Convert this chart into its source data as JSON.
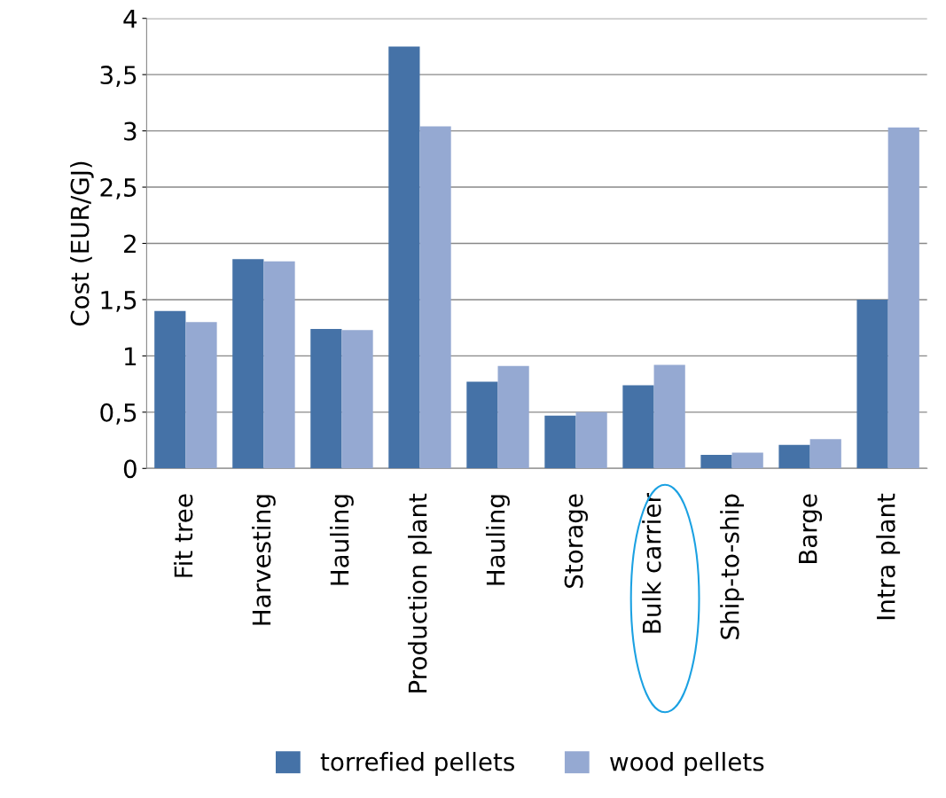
{
  "chart_data": {
    "type": "bar",
    "ylabel": "Cost (EUR/GJ)",
    "categories": [
      "Fit tree",
      "Harvesting",
      "Hauling",
      "Production plant",
      "Hauling",
      "Storage",
      "Bulk carrier",
      "Ship-to-ship",
      "Barge",
      "Intra plant"
    ],
    "series": [
      {
        "name": "torrefied pellets",
        "color": "#4572a7",
        "values": [
          1.4,
          1.86,
          1.24,
          3.75,
          0.77,
          0.47,
          0.74,
          0.12,
          0.21,
          1.5
        ]
      },
      {
        "name": "wood pellets",
        "color": "#95a9d2",
        "values": [
          1.3,
          1.84,
          1.23,
          3.04,
          0.91,
          0.5,
          0.92,
          0.14,
          0.26,
          3.03
        ]
      }
    ],
    "ylim": [
      0,
      4
    ],
    "yticks": [
      0,
      {
        "value": 0.5,
        "label": "0,5"
      },
      1,
      {
        "value": 1.5,
        "label": "1,5"
      },
      2,
      {
        "value": 2.5,
        "label": "2,5"
      },
      3,
      {
        "value": 3.5,
        "label": "3,5"
      },
      4
    ],
    "grid": "y",
    "legend": "bottom"
  }
}
